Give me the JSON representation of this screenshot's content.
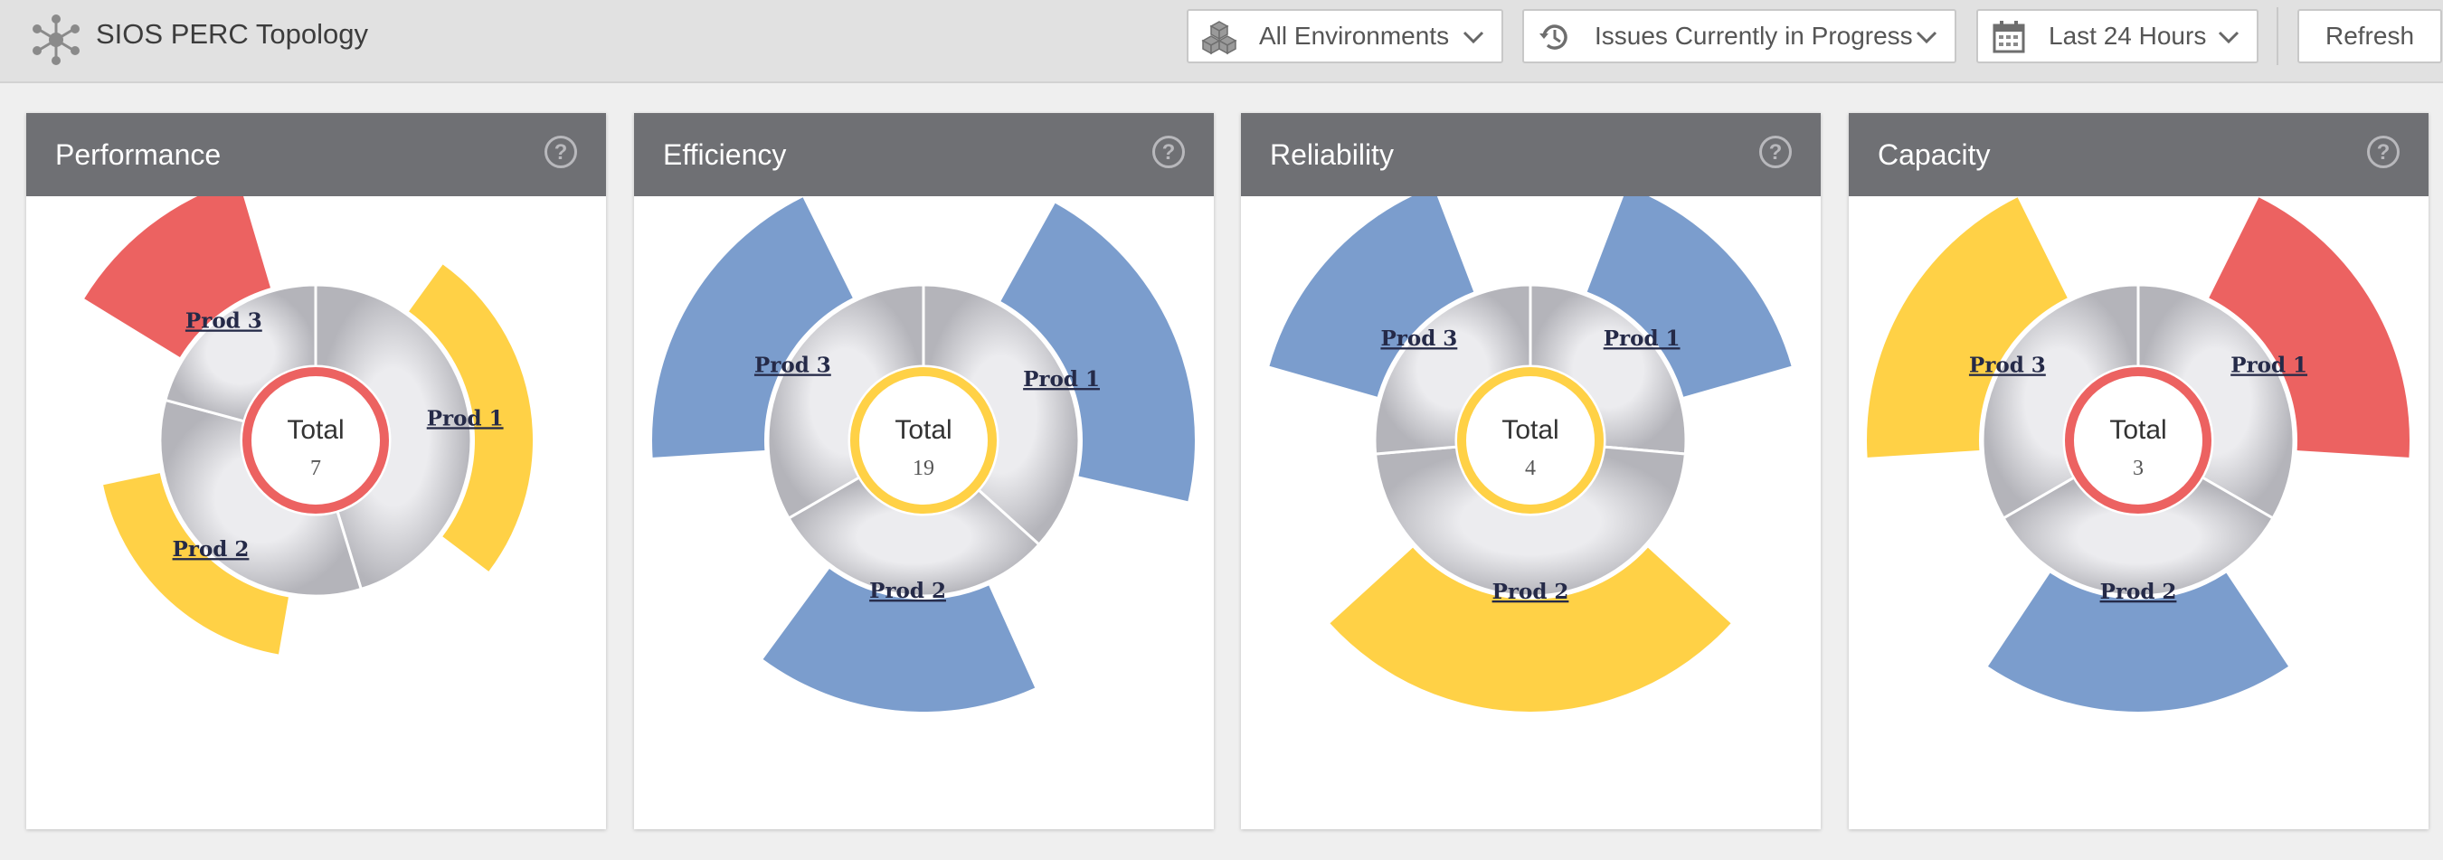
{
  "header": {
    "title": "SIOS PERC Topology",
    "environment_filter": "All Environments",
    "issue_filter": "Issues Currently in Progress",
    "time_filter": "Last 24 Hours",
    "refresh_label": "Refresh"
  },
  "colors": {
    "critical": "#ec6261",
    "warning": "#ffd146",
    "normal": "#7b9dcd"
  },
  "cards": [
    {
      "title": "Performance",
      "total_label": "Total",
      "total": "7",
      "status": "critical",
      "segments": [
        {
          "label": "Prod 1",
          "start": 0,
          "end": 163,
          "status": "warning",
          "level": 1
        },
        {
          "label": "Prod 2",
          "start": 163,
          "end": 285,
          "status": "warning",
          "level": 1
        },
        {
          "label": "Prod 3",
          "start": 285,
          "end": 360,
          "status": "critical",
          "level": 2
        }
      ]
    },
    {
      "title": "Efficiency",
      "total_label": "Total",
      "total": "19",
      "status": "warning",
      "segments": [
        {
          "label": "Prod 1",
          "start": 0,
          "end": 132,
          "status": "normal",
          "level": 2
        },
        {
          "label": "Prod 2",
          "start": 132,
          "end": 240,
          "status": "normal",
          "level": 2
        },
        {
          "label": "Prod 3",
          "start": 240,
          "end": 360,
          "status": "normal",
          "level": 2
        }
      ]
    },
    {
      "title": "Reliability",
      "total_label": "Total",
      "total": "4",
      "status": "warning",
      "segments": [
        {
          "label": "Prod 1",
          "start": 0,
          "end": 95,
          "status": "normal",
          "level": 2
        },
        {
          "label": "Prod 2",
          "start": 95,
          "end": 265,
          "status": "warning",
          "level": 2
        },
        {
          "label": "Prod 3",
          "start": 265,
          "end": 360,
          "status": "normal",
          "level": 2
        }
      ]
    },
    {
      "title": "Capacity",
      "total_label": "Total",
      "total": "3",
      "status": "critical",
      "segments": [
        {
          "label": "Prod 1",
          "start": 0,
          "end": 120,
          "status": "critical",
          "level": 2
        },
        {
          "label": "Prod 2",
          "start": 120,
          "end": 240,
          "status": "normal",
          "level": 2
        },
        {
          "label": "Prod 3",
          "start": 240,
          "end": 360,
          "status": "warning",
          "level": 2
        }
      ]
    }
  ]
}
